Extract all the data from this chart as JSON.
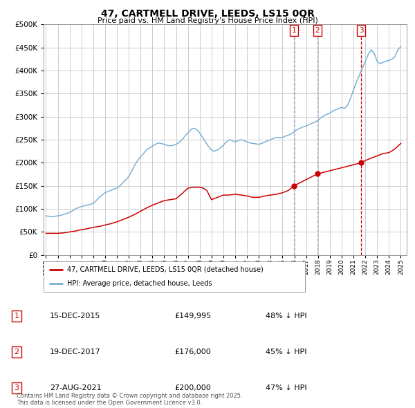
{
  "title": "47, CARTMELL DRIVE, LEEDS, LS15 0QR",
  "subtitle": "Price paid vs. HM Land Registry's House Price Index (HPI)",
  "legend_label_red": "47, CARTMELL DRIVE, LEEDS, LS15 0QR (detached house)",
  "legend_label_blue": "HPI: Average price, detached house, Leeds",
  "transactions": [
    {
      "num": 1,
      "date": "15-DEC-2015",
      "price": 149995,
      "year": 2015.96,
      "pct": "48% ↓ HPI",
      "vline_color": "#aaaacc"
    },
    {
      "num": 2,
      "date": "19-DEC-2017",
      "price": 176000,
      "year": 2017.96,
      "pct": "45% ↓ HPI",
      "vline_color": "#aaaacc"
    },
    {
      "num": 3,
      "date": "27-AUG-2021",
      "price": 200000,
      "year": 2021.65,
      "pct": "47% ↓ HPI",
      "vline_color": "#cc0000"
    }
  ],
  "footer": "Contains HM Land Registry data © Crown copyright and database right 2025.\nThis data is licensed under the Open Government Licence v3.0.",
  "ylim": [
    0,
    500000
  ],
  "xlim": [
    1994.8,
    2025.5
  ],
  "red_color": "#cc0000",
  "blue_color": "#7ab0d4",
  "grid_color": "#cccccc",
  "background_color": "#ffffff",
  "hpi_data_x": [
    1995.0,
    1995.25,
    1995.5,
    1995.75,
    1996.0,
    1996.25,
    1996.5,
    1996.75,
    1997.0,
    1997.25,
    1997.5,
    1997.75,
    1998.0,
    1998.25,
    1998.5,
    1998.75,
    1999.0,
    1999.25,
    1999.5,
    1999.75,
    2000.0,
    2000.25,
    2000.5,
    2000.75,
    2001.0,
    2001.25,
    2001.5,
    2001.75,
    2002.0,
    2002.25,
    2002.5,
    2002.75,
    2003.0,
    2003.25,
    2003.5,
    2003.75,
    2004.0,
    2004.25,
    2004.5,
    2004.75,
    2005.0,
    2005.25,
    2005.5,
    2005.75,
    2006.0,
    2006.25,
    2006.5,
    2006.75,
    2007.0,
    2007.25,
    2007.5,
    2007.75,
    2008.0,
    2008.25,
    2008.5,
    2008.75,
    2009.0,
    2009.25,
    2009.5,
    2009.75,
    2010.0,
    2010.25,
    2010.5,
    2010.75,
    2011.0,
    2011.25,
    2011.5,
    2011.75,
    2012.0,
    2012.25,
    2012.5,
    2012.75,
    2013.0,
    2013.25,
    2013.5,
    2013.75,
    2014.0,
    2014.25,
    2014.5,
    2014.75,
    2015.0,
    2015.25,
    2015.5,
    2015.75,
    2016.0,
    2016.25,
    2016.5,
    2016.75,
    2017.0,
    2017.25,
    2017.5,
    2017.75,
    2018.0,
    2018.25,
    2018.5,
    2018.75,
    2019.0,
    2019.25,
    2019.5,
    2019.75,
    2020.0,
    2020.25,
    2020.5,
    2020.75,
    2021.0,
    2021.25,
    2021.5,
    2021.75,
    2022.0,
    2022.25,
    2022.5,
    2022.75,
    2023.0,
    2023.25,
    2023.5,
    2023.75,
    2024.0,
    2024.25,
    2024.5,
    2024.75,
    2025.0
  ],
  "hpi_data_y": [
    85000,
    84000,
    83000,
    84000,
    85000,
    86000,
    88000,
    90000,
    92000,
    96000,
    100000,
    103000,
    105000,
    107000,
    108000,
    110000,
    112000,
    118000,
    125000,
    130000,
    135000,
    138000,
    140000,
    143000,
    145000,
    150000,
    157000,
    163000,
    170000,
    182000,
    195000,
    205000,
    213000,
    220000,
    228000,
    232000,
    236000,
    240000,
    243000,
    242000,
    240000,
    238000,
    237000,
    238000,
    240000,
    244000,
    250000,
    258000,
    265000,
    272000,
    275000,
    272000,
    265000,
    255000,
    245000,
    235000,
    228000,
    225000,
    228000,
    232000,
    238000,
    245000,
    250000,
    248000,
    245000,
    248000,
    250000,
    248000,
    245000,
    243000,
    242000,
    241000,
    240000,
    242000,
    245000,
    248000,
    250000,
    253000,
    255000,
    255000,
    255000,
    258000,
    260000,
    263000,
    268000,
    272000,
    275000,
    278000,
    280000,
    283000,
    286000,
    288000,
    292000,
    298000,
    302000,
    305000,
    308000,
    312000,
    315000,
    318000,
    320000,
    318000,
    325000,
    340000,
    358000,
    375000,
    390000,
    405000,
    420000,
    435000,
    445000,
    438000,
    420000,
    415000,
    418000,
    420000,
    422000,
    425000,
    430000,
    445000,
    452000
  ],
  "price_data_x": [
    1995.0,
    1995.5,
    1996.0,
    1996.5,
    1997.0,
    1997.5,
    1998.0,
    1998.5,
    1999.0,
    1999.5,
    2000.0,
    2000.5,
    2001.0,
    2001.5,
    2002.0,
    2002.5,
    2003.0,
    2003.5,
    2004.0,
    2004.5,
    2005.0,
    2005.5,
    2006.0,
    2006.5,
    2007.0,
    2007.5,
    2008.0,
    2008.3,
    2008.6,
    2009.0,
    2009.5,
    2010.0,
    2010.5,
    2011.0,
    2011.5,
    2012.0,
    2012.5,
    2013.0,
    2013.5,
    2014.0,
    2014.5,
    2015.0,
    2015.5,
    2015.96,
    2017.96,
    2021.65,
    2022.0,
    2022.5,
    2023.0,
    2023.5,
    2024.0,
    2024.5,
    2025.0
  ],
  "price_data_y": [
    47000,
    47000,
    47000,
    48000,
    50000,
    52000,
    55000,
    57000,
    60000,
    62000,
    65000,
    68000,
    72000,
    77000,
    82000,
    88000,
    95000,
    102000,
    108000,
    113000,
    118000,
    120000,
    122000,
    133000,
    145000,
    147000,
    147000,
    145000,
    140000,
    120000,
    125000,
    130000,
    130000,
    132000,
    130000,
    128000,
    125000,
    125000,
    128000,
    130000,
    132000,
    135000,
    140000,
    149995,
    176000,
    200000,
    205000,
    210000,
    215000,
    220000,
    222000,
    230000,
    242000
  ]
}
